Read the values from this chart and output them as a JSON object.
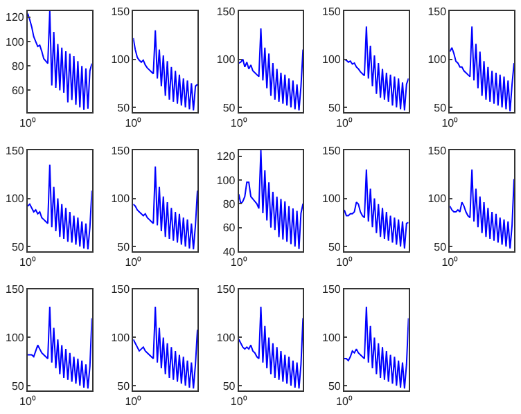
{
  "chart_data": [
    {
      "type": "line",
      "color": "#0000ff",
      "annotations": [
        "10⁰"
      ],
      "ylim": [
        42,
        125
      ],
      "yticks": [
        60,
        80,
        100,
        120
      ],
      "categories": [
        null,
        null,
        null,
        null,
        null,
        null,
        null,
        null,
        null,
        null,
        null,
        null,
        null,
        null,
        null,
        null,
        null,
        null,
        null,
        null,
        null,
        null,
        null,
        null,
        null,
        null,
        null,
        null,
        null,
        null,
        null,
        null,
        null
      ],
      "values": [
        123,
        118,
        112,
        104,
        100,
        96,
        97,
        92,
        86,
        84,
        82,
        125,
        64,
        108,
        62,
        98,
        60,
        95,
        58,
        92,
        50,
        90,
        52,
        88,
        48,
        84,
        46,
        80,
        44,
        78,
        45,
        76,
        82
      ]
    },
    {
      "type": "line",
      "color": "#0000ff",
      "annotations": [
        "10⁰"
      ],
      "ylim": [
        45,
        150
      ],
      "yticks": [
        50,
        100,
        150
      ],
      "categories": [
        null,
        null,
        null,
        null,
        null,
        null,
        null,
        null,
        null,
        null,
        null,
        null,
        null,
        null,
        null,
        null,
        null,
        null,
        null,
        null,
        null,
        null,
        null,
        null,
        null,
        null,
        null,
        null,
        null,
        null,
        null,
        null,
        null
      ],
      "values": [
        122,
        110,
        102,
        99,
        97,
        99,
        94,
        91,
        89,
        87,
        85,
        130,
        80,
        110,
        72,
        104,
        62,
        98,
        58,
        92,
        56,
        88,
        54,
        84,
        52,
        80,
        50,
        78,
        48,
        75,
        47,
        72,
        74
      ]
    },
    {
      "type": "line",
      "color": "#0000ff",
      "annotations": [
        "10⁰"
      ],
      "ylim": [
        45,
        150
      ],
      "yticks": [
        50,
        100,
        150
      ],
      "categories": [
        null,
        null,
        null,
        null,
        null,
        null,
        null,
        null,
        null,
        null,
        null,
        null,
        null,
        null,
        null,
        null,
        null,
        null,
        null,
        null,
        null,
        null,
        null,
        null,
        null,
        null,
        null,
        null,
        null,
        null,
        null,
        null,
        null
      ],
      "values": [
        96,
        97,
        100,
        92,
        97,
        90,
        94,
        88,
        86,
        84,
        82,
        132,
        78,
        112,
        70,
        106,
        62,
        96,
        58,
        90,
        56,
        86,
        54,
        84,
        52,
        80,
        50,
        78,
        48,
        74,
        47,
        72,
        110
      ]
    },
    {
      "type": "line",
      "color": "#0000ff",
      "annotations": [
        "10⁰"
      ],
      "ylim": [
        45,
        150
      ],
      "yticks": [
        50,
        100,
        150
      ],
      "categories": [
        null,
        null,
        null,
        null,
        null,
        null,
        null,
        null,
        null,
        null,
        null,
        null,
        null,
        null,
        null,
        null,
        null,
        null,
        null,
        null,
        null,
        null,
        null,
        null,
        null,
        null,
        null,
        null,
        null,
        null,
        null,
        null,
        null
      ],
      "values": [
        100,
        99,
        97,
        98,
        95,
        96,
        92,
        90,
        87,
        85,
        83,
        134,
        80,
        114,
        72,
        104,
        64,
        96,
        60,
        90,
        58,
        86,
        56,
        84,
        52,
        82,
        50,
        80,
        48,
        76,
        47,
        74,
        80
      ]
    },
    {
      "type": "line",
      "color": "#0000ff",
      "annotations": [
        "10⁰"
      ],
      "ylim": [
        45,
        150
      ],
      "yticks": [
        50,
        100,
        150
      ],
      "categories": [
        null,
        null,
        null,
        null,
        null,
        null,
        null,
        null,
        null,
        null,
        null,
        null,
        null,
        null,
        null,
        null,
        null,
        null,
        null,
        null,
        null,
        null,
        null,
        null,
        null,
        null,
        null,
        null,
        null,
        null,
        null,
        null,
        null
      ],
      "values": [
        108,
        112,
        106,
        98,
        96,
        92,
        92,
        88,
        86,
        84,
        82,
        134,
        78,
        116,
        70,
        108,
        62,
        98,
        58,
        92,
        56,
        88,
        54,
        86,
        52,
        84,
        50,
        82,
        48,
        78,
        46,
        74,
        96
      ]
    },
    {
      "type": "line",
      "color": "#0000ff",
      "annotations": [
        "10⁰"
      ],
      "ylim": [
        45,
        150
      ],
      "yticks": [
        50,
        100,
        150
      ],
      "categories": [
        null,
        null,
        null,
        null,
        null,
        null,
        null,
        null,
        null,
        null,
        null,
        null,
        null,
        null,
        null,
        null,
        null,
        null,
        null,
        null,
        null,
        null,
        null,
        null,
        null,
        null,
        null,
        null,
        null,
        null,
        null,
        null,
        null
      ],
      "values": [
        92,
        94,
        90,
        86,
        88,
        84,
        86,
        80,
        78,
        76,
        74,
        135,
        70,
        112,
        66,
        100,
        60,
        94,
        58,
        90,
        55,
        86,
        54,
        82,
        52,
        80,
        50,
        76,
        48,
        74,
        47,
        70,
        108
      ]
    },
    {
      "type": "line",
      "color": "#0000ff",
      "annotations": [
        "10⁰"
      ],
      "ylim": [
        45,
        150
      ],
      "yticks": [
        50,
        100,
        150
      ],
      "categories": [
        null,
        null,
        null,
        null,
        null,
        null,
        null,
        null,
        null,
        null,
        null,
        null,
        null,
        null,
        null,
        null,
        null,
        null,
        null,
        null,
        null,
        null,
        null,
        null,
        null,
        null,
        null,
        null,
        null,
        null,
        null,
        null,
        null
      ],
      "values": [
        94,
        92,
        88,
        86,
        84,
        82,
        84,
        80,
        78,
        76,
        74,
        133,
        72,
        112,
        66,
        102,
        60,
        96,
        58,
        90,
        56,
        86,
        54,
        84,
        52,
        80,
        50,
        78,
        48,
        74,
        47,
        72,
        108
      ]
    },
    {
      "type": "line",
      "color": "#0000ff",
      "annotations": [
        "10⁰"
      ],
      "ylim": [
        40,
        125
      ],
      "yticks": [
        40,
        60,
        80,
        100,
        120
      ],
      "categories": [
        null,
        null,
        null,
        null,
        null,
        null,
        null,
        null,
        null,
        null,
        null,
        null,
        null,
        null,
        null,
        null,
        null,
        null,
        null,
        null,
        null,
        null,
        null,
        null,
        null,
        null,
        null,
        null,
        null,
        null,
        null,
        null,
        null
      ],
      "values": [
        88,
        80,
        82,
        86,
        98,
        98,
        86,
        84,
        82,
        80,
        76,
        125,
        72,
        108,
        66,
        98,
        60,
        90,
        58,
        86,
        52,
        84,
        50,
        82,
        48,
        78,
        46,
        76,
        44,
        74,
        42,
        72,
        80
      ]
    },
    {
      "type": "line",
      "color": "#0000ff",
      "annotations": [
        "10⁰"
      ],
      "ylim": [
        45,
        150
      ],
      "yticks": [
        50,
        100,
        150
      ],
      "categories": [
        null,
        null,
        null,
        null,
        null,
        null,
        null,
        null,
        null,
        null,
        null,
        null,
        null,
        null,
        null,
        null,
        null,
        null,
        null,
        null,
        null,
        null,
        null,
        null,
        null,
        null,
        null,
        null,
        null,
        null,
        null,
        null,
        null
      ],
      "values": [
        88,
        82,
        82,
        84,
        84,
        86,
        96,
        94,
        86,
        82,
        80,
        130,
        76,
        110,
        70,
        100,
        64,
        94,
        60,
        90,
        58,
        86,
        56,
        82,
        54,
        80,
        52,
        78,
        50,
        76,
        48,
        74,
        75
      ]
    },
    {
      "type": "line",
      "color": "#0000ff",
      "annotations": [
        "10⁰"
      ],
      "ylim": [
        45,
        150
      ],
      "yticks": [
        50,
        100,
        150
      ],
      "categories": [
        null,
        null,
        null,
        null,
        null,
        null,
        null,
        null,
        null,
        null,
        null,
        null,
        null,
        null,
        null,
        null,
        null,
        null,
        null,
        null,
        null,
        null,
        null,
        null,
        null,
        null,
        null,
        null,
        null,
        null,
        null,
        null,
        null
      ],
      "values": [
        92,
        88,
        86,
        86,
        88,
        86,
        96,
        92,
        86,
        82,
        80,
        130,
        76,
        110,
        70,
        102,
        64,
        96,
        60,
        90,
        58,
        86,
        56,
        84,
        54,
        80,
        52,
        78,
        50,
        76,
        48,
        72,
        120
      ]
    },
    {
      "type": "line",
      "color": "#0000ff",
      "annotations": [
        "10⁰"
      ],
      "ylim": [
        45,
        150
      ],
      "yticks": [
        50,
        100,
        150
      ],
      "categories": [
        null,
        null,
        null,
        null,
        null,
        null,
        null,
        null,
        null,
        null,
        null,
        null,
        null,
        null,
        null,
        null,
        null,
        null,
        null,
        null,
        null,
        null,
        null,
        null,
        null,
        null,
        null,
        null,
        null,
        null,
        null,
        null,
        null
      ],
      "values": [
        82,
        82,
        82,
        80,
        86,
        92,
        88,
        84,
        82,
        80,
        78,
        132,
        74,
        110,
        68,
        98,
        62,
        92,
        58,
        88,
        56,
        84,
        54,
        80,
        52,
        78,
        50,
        76,
        48,
        72,
        47,
        70,
        120
      ]
    },
    {
      "type": "line",
      "color": "#0000ff",
      "annotations": [
        "10⁰"
      ],
      "ylim": [
        45,
        150
      ],
      "yticks": [
        50,
        100,
        150
      ],
      "categories": [
        null,
        null,
        null,
        null,
        null,
        null,
        null,
        null,
        null,
        null,
        null,
        null,
        null,
        null,
        null,
        null,
        null,
        null,
        null,
        null,
        null,
        null,
        null,
        null,
        null,
        null,
        null,
        null,
        null,
        null,
        null,
        null,
        null
      ],
      "values": [
        98,
        94,
        90,
        86,
        88,
        90,
        86,
        84,
        82,
        80,
        78,
        132,
        74,
        110,
        68,
        100,
        62,
        94,
        58,
        90,
        56,
        86,
        54,
        82,
        52,
        80,
        50,
        76,
        48,
        74,
        47,
        72,
        108
      ]
    },
    {
      "type": "line",
      "color": "#0000ff",
      "annotations": [
        "10⁰"
      ],
      "ylim": [
        45,
        150
      ],
      "yticks": [
        50,
        100,
        150
      ],
      "categories": [
        null,
        null,
        null,
        null,
        null,
        null,
        null,
        null,
        null,
        null,
        null,
        null,
        null,
        null,
        null,
        null,
        null,
        null,
        null,
        null,
        null,
        null,
        null,
        null,
        null,
        null,
        null,
        null,
        null,
        null,
        null,
        null,
        null
      ],
      "values": [
        98,
        94,
        90,
        88,
        90,
        88,
        92,
        86,
        84,
        80,
        78,
        132,
        74,
        112,
        68,
        100,
        62,
        94,
        58,
        90,
        56,
        86,
        54,
        82,
        52,
        80,
        50,
        76,
        48,
        74,
        47,
        72,
        120
      ]
    },
    {
      "type": "line",
      "color": "#0000ff",
      "annotations": [
        "10⁰"
      ],
      "ylim": [
        45,
        150
      ],
      "yticks": [
        50,
        100,
        150
      ],
      "categories": [
        null,
        null,
        null,
        null,
        null,
        null,
        null,
        null,
        null,
        null,
        null,
        null,
        null,
        null,
        null,
        null,
        null,
        null,
        null,
        null,
        null,
        null,
        null,
        null,
        null,
        null,
        null,
        null,
        null,
        null,
        null,
        null,
        null
      ],
      "values": [
        78,
        78,
        76,
        80,
        86,
        84,
        88,
        84,
        82,
        80,
        78,
        132,
        74,
        112,
        68,
        100,
        62,
        94,
        58,
        90,
        56,
        86,
        54,
        82,
        52,
        80,
        50,
        76,
        48,
        74,
        47,
        72,
        120
      ]
    }
  ]
}
